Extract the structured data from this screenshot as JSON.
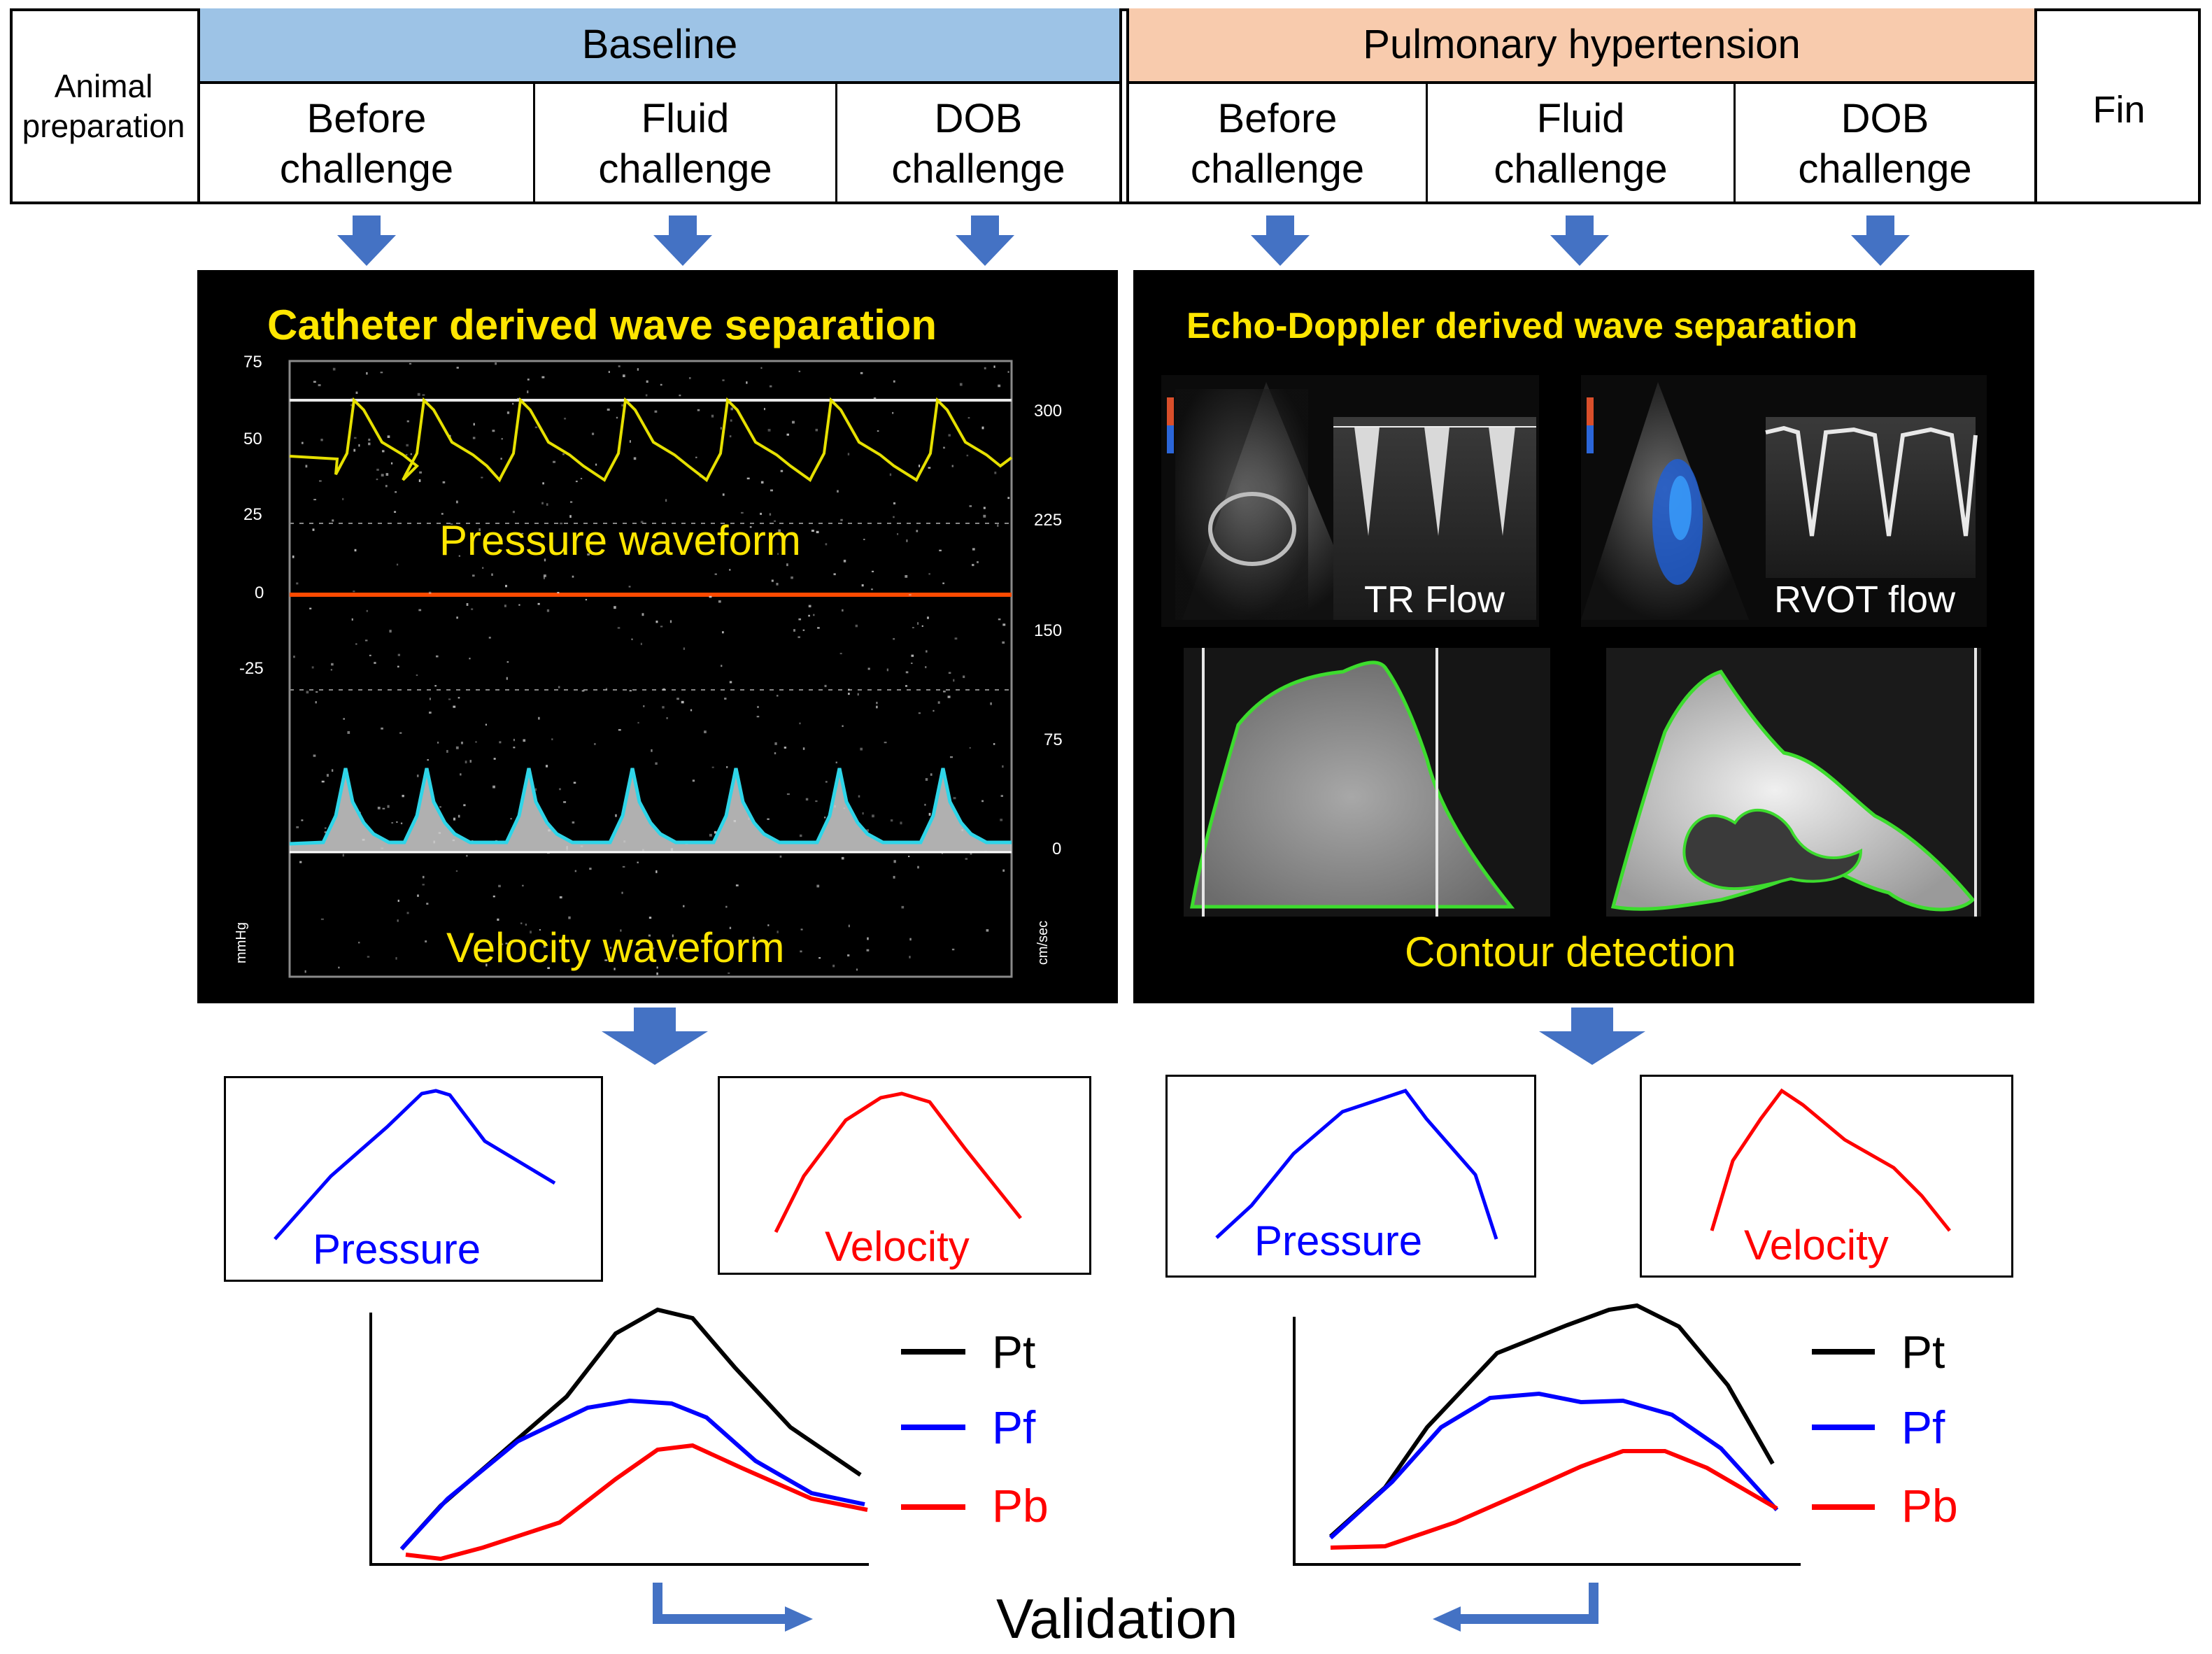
{
  "header": {
    "animal_prep": "Animal preparation",
    "fin": "Fin",
    "baseline": "Baseline",
    "ph": "Pulmonary hypertension",
    "stages": {
      "before": "Before challenge",
      "fluid": "Fluid challenge",
      "dob": "DOB challenge"
    }
  },
  "catheter_panel": {
    "title": "Catheter derived wave separation",
    "pressure_label": "Pressure waveform",
    "velocity_label": "Velocity waveform",
    "left_ticks": [
      "75",
      "50",
      "25",
      "0",
      "-25"
    ],
    "right_ticks": [
      "300",
      "225",
      "150",
      "75",
      "0"
    ],
    "left_unit": "mmHg",
    "right_unit": "cm/sec"
  },
  "echo_panel": {
    "title": "Echo-Doppler derived wave separation",
    "tr_label": "TR Flow",
    "rvot_label": "RVOT flow",
    "contour_label": "Contour detection"
  },
  "mini_plots": {
    "pressure": "Pressure",
    "velocity": "Velocity"
  },
  "legend": {
    "pt": "Pt",
    "pf": "Pf",
    "pb": "Pb"
  },
  "validation": "Validation",
  "colors": {
    "baseline_header": "#9DC3E6",
    "ph_header": "#F8CBAD",
    "arrow": "#4472C4",
    "pressure_line": "#0000FF",
    "velocity_line": "#FF0000",
    "pt": "#000000",
    "pf": "#0000FF",
    "pb": "#FF0000",
    "panel_title": "#FFE600",
    "pressure_trace": "#E6E000",
    "velocity_trace": "#2FD5E8",
    "zero_line": "#FF4A00",
    "contour": "#3DDC2E"
  }
}
